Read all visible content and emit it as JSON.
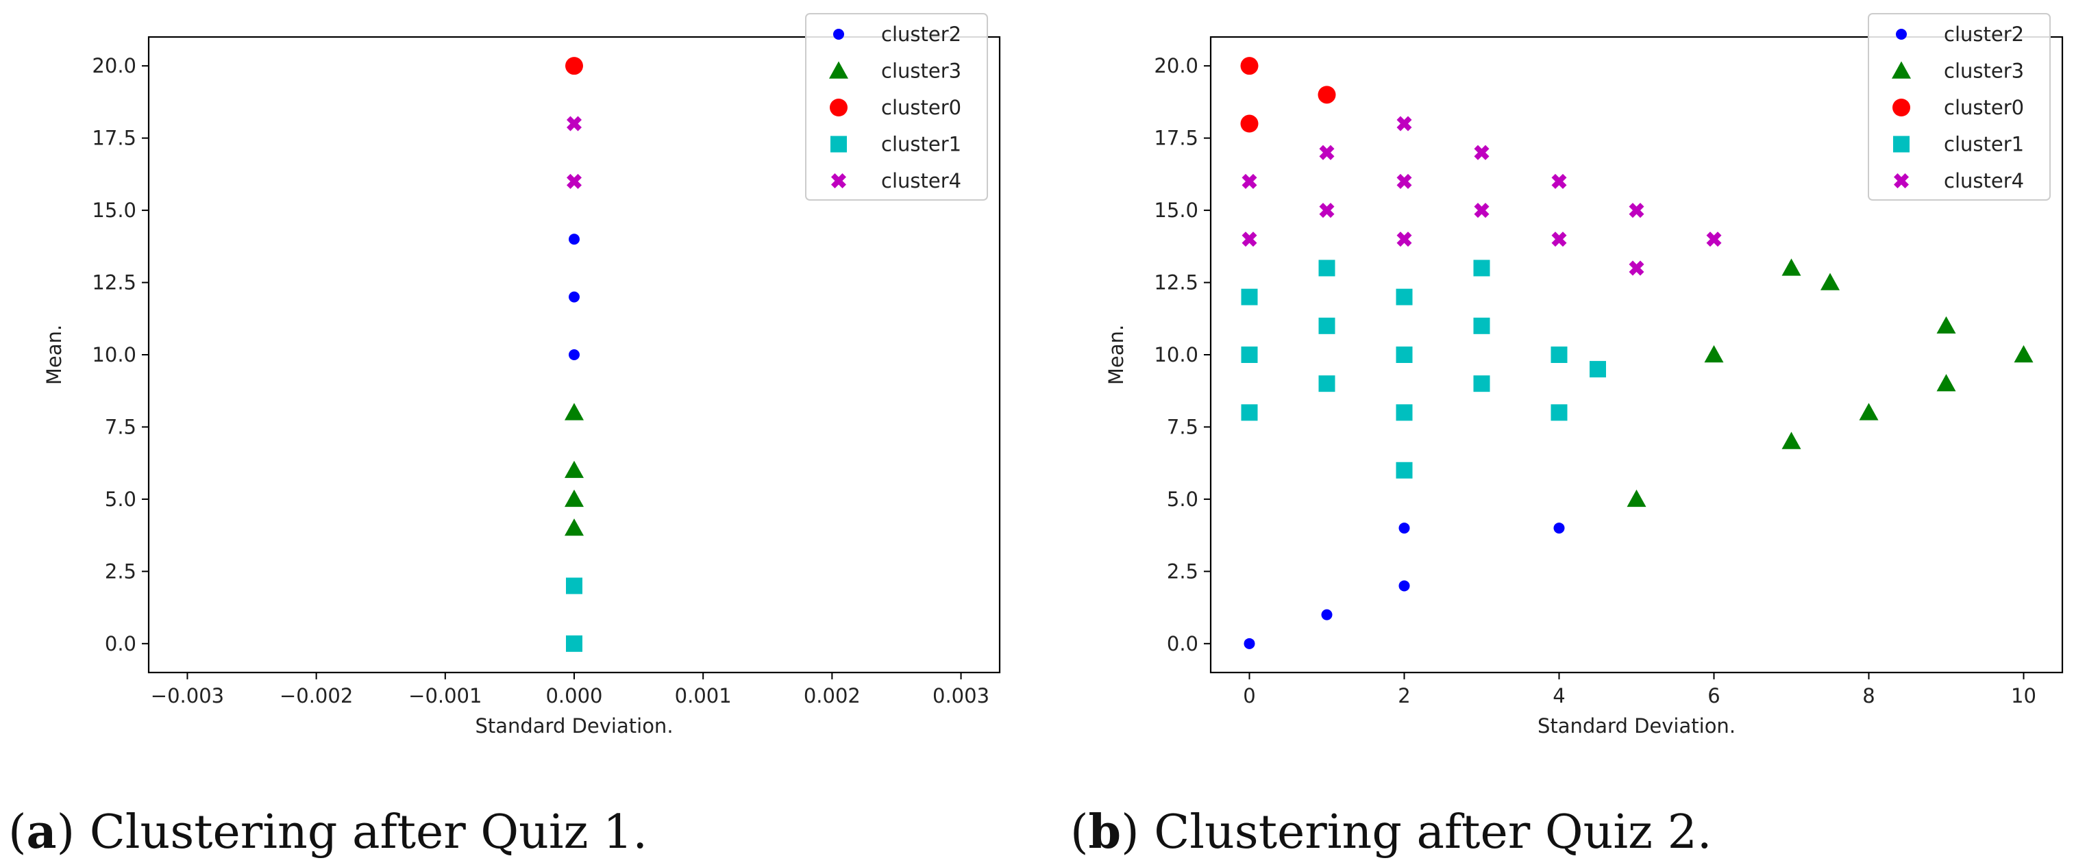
{
  "chart_data": [
    {
      "type": "scatter",
      "xlabel": "Standard Deviation.",
      "ylabel": "Mean.",
      "xlim": [
        -0.0033,
        0.0033
      ],
      "ylim": [
        -1.0,
        21.0
      ],
      "xticks": [
        -0.003,
        -0.002,
        -0.001,
        0.0,
        0.001,
        0.002,
        0.003
      ],
      "xtick_labels": [
        "−0.003",
        "−0.002",
        "−0.001",
        "0.000",
        "0.001",
        "0.002",
        "0.003"
      ],
      "yticks": [
        0,
        2.5,
        5,
        7.5,
        10,
        12.5,
        15,
        17.5,
        20
      ],
      "ytick_labels": [
        "0.0",
        "2.5",
        "5.0",
        "7.5",
        "10.0",
        "12.5",
        "15.0",
        "17.5",
        "20.0"
      ],
      "legend_position": "top-right",
      "series": [
        {
          "name": "cluster2",
          "color": "#0000ff",
          "marker": "circle-small",
          "points": [
            [
              0,
              14
            ],
            [
              0,
              12
            ],
            [
              0,
              10
            ]
          ]
        },
        {
          "name": "cluster3",
          "color": "#008000",
          "marker": "triangle",
          "points": [
            [
              0,
              8
            ],
            [
              0,
              6
            ],
            [
              0,
              5
            ],
            [
              0,
              4
            ]
          ]
        },
        {
          "name": "cluster0",
          "color": "#ff0000",
          "marker": "circle",
          "points": [
            [
              0,
              20
            ]
          ]
        },
        {
          "name": "cluster1",
          "color": "#00bfbf",
          "marker": "square",
          "points": [
            [
              0,
              2
            ],
            [
              0,
              0
            ]
          ]
        },
        {
          "name": "cluster4",
          "color": "#bf00bf",
          "marker": "x",
          "points": [
            [
              0,
              18
            ],
            [
              0,
              16
            ]
          ]
        }
      ]
    },
    {
      "type": "scatter",
      "xlabel": "Standard Deviation.",
      "ylabel": "Mean.",
      "xlim": [
        -0.5,
        10.5
      ],
      "ylim": [
        -1.0,
        21.0
      ],
      "xticks": [
        0,
        2,
        4,
        6,
        8,
        10
      ],
      "xtick_labels": [
        "0",
        "2",
        "4",
        "6",
        "8",
        "10"
      ],
      "yticks": [
        0,
        2.5,
        5,
        7.5,
        10,
        12.5,
        15,
        17.5,
        20
      ],
      "ytick_labels": [
        "0.0",
        "2.5",
        "5.0",
        "7.5",
        "10.0",
        "12.5",
        "15.0",
        "17.5",
        "20.0"
      ],
      "legend_position": "top-right",
      "series": [
        {
          "name": "cluster2",
          "color": "#0000ff",
          "marker": "circle-small",
          "points": [
            [
              0,
              0
            ],
            [
              1,
              1
            ],
            [
              2,
              4
            ],
            [
              2,
              2
            ],
            [
              4,
              4
            ]
          ]
        },
        {
          "name": "cluster3",
          "color": "#008000",
          "marker": "triangle",
          "points": [
            [
              5,
              5
            ],
            [
              6,
              10
            ],
            [
              7,
              13
            ],
            [
              7,
              7
            ],
            [
              7.5,
              12.5
            ],
            [
              8,
              8
            ],
            [
              9,
              11
            ],
            [
              9,
              9
            ],
            [
              10,
              10
            ]
          ]
        },
        {
          "name": "cluster0",
          "color": "#ff0000",
          "marker": "circle",
          "points": [
            [
              0,
              20
            ],
            [
              0,
              18
            ],
            [
              1,
              19
            ]
          ]
        },
        {
          "name": "cluster1",
          "color": "#00bfbf",
          "marker": "square",
          "points": [
            [
              0,
              12
            ],
            [
              0,
              10
            ],
            [
              0,
              8
            ],
            [
              1,
              13
            ],
            [
              1,
              11
            ],
            [
              1,
              9
            ],
            [
              2,
              12
            ],
            [
              2,
              10
            ],
            [
              2,
              8
            ],
            [
              2,
              6
            ],
            [
              3,
              13
            ],
            [
              3,
              11
            ],
            [
              3,
              9
            ],
            [
              4,
              10
            ],
            [
              4,
              8
            ],
            [
              4.5,
              9.5
            ]
          ]
        },
        {
          "name": "cluster4",
          "color": "#bf00bf",
          "marker": "x",
          "points": [
            [
              0,
              16
            ],
            [
              0,
              14
            ],
            [
              1,
              17
            ],
            [
              1,
              15
            ],
            [
              2,
              18
            ],
            [
              2,
              16
            ],
            [
              2,
              14
            ],
            [
              3,
              17
            ],
            [
              3,
              15
            ],
            [
              4,
              16
            ],
            [
              4,
              14
            ],
            [
              5,
              15
            ],
            [
              5,
              13
            ],
            [
              6,
              14
            ]
          ]
        }
      ]
    }
  ],
  "captions": {
    "a_label": "a",
    "a_text": "Clustering after Quiz 1.",
    "b_label": "b",
    "b_text": "Clustering after Quiz 2."
  }
}
